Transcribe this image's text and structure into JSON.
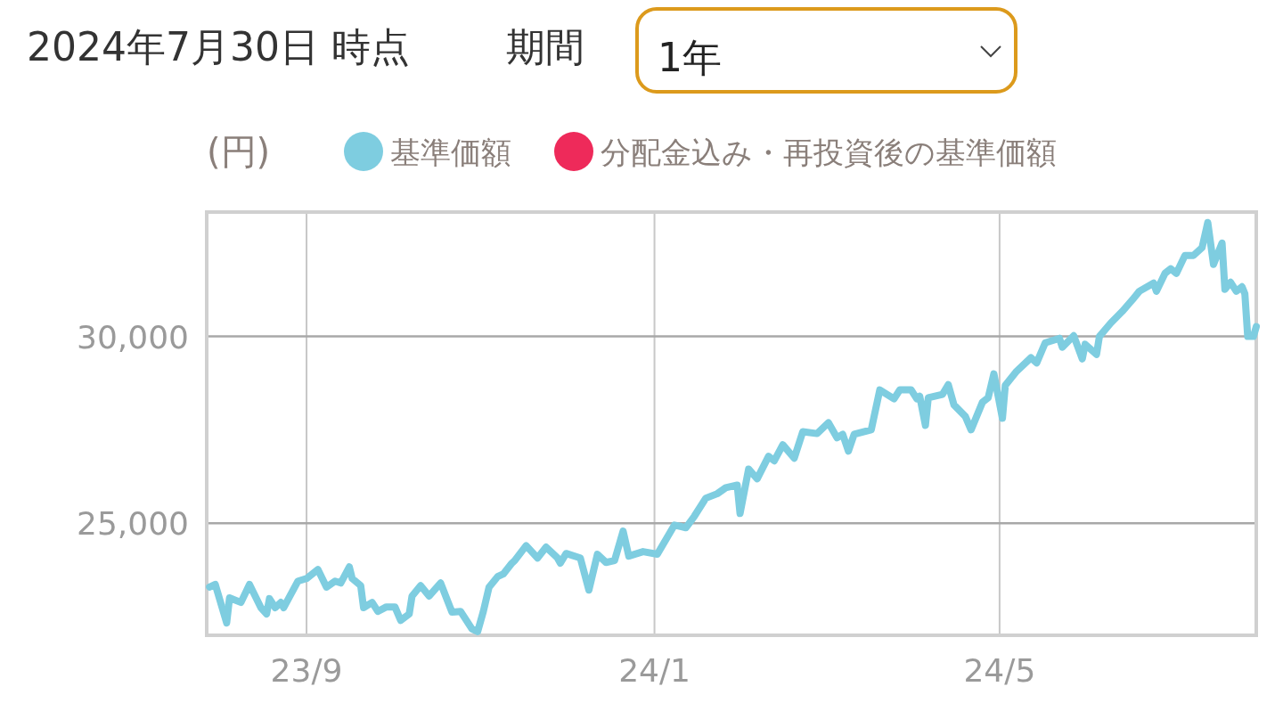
{
  "chart_data": {
    "type": "line",
    "title": "2024年7月30日 時点",
    "annotations": [
      "期間",
      "1年"
    ],
    "ylabel": "(円)",
    "legend": "top",
    "grid": true,
    "xlim": [
      "2023-07-28",
      "2024-07-30"
    ],
    "ylim": [
      22000,
      33330
    ],
    "xticks": [
      {
        "value": "2023-09-01",
        "label": "23/9"
      },
      {
        "value": "2024-01-01",
        "label": "24/1"
      },
      {
        "value": "2024-05-01",
        "label": "24/5"
      }
    ],
    "yticks": [
      {
        "value": 25000,
        "label": "25,000"
      },
      {
        "value": 30000,
        "label": "30,000"
      }
    ],
    "x": [
      "2023-07-29",
      "2023-07-31",
      "2023-08-04",
      "2023-08-05",
      "2023-08-09",
      "2023-08-12",
      "2023-08-16",
      "2023-08-18",
      "2023-08-19",
      "2023-08-21",
      "2023-08-23",
      "2023-08-24",
      "2023-08-29",
      "2023-09-01",
      "2023-09-05",
      "2023-09-08",
      "2023-09-11",
      "2023-09-13",
      "2023-09-16",
      "2023-09-17",
      "2023-09-20",
      "2023-09-21",
      "2023-09-24",
      "2023-09-26",
      "2023-09-29",
      "2023-10-02",
      "2023-10-04",
      "2023-10-07",
      "2023-10-08",
      "2023-10-11",
      "2023-10-14",
      "2023-10-18",
      "2023-10-22",
      "2023-10-25",
      "2023-10-29",
      "2023-10-31",
      "2023-11-02",
      "2023-11-04",
      "2023-11-07",
      "2023-11-09",
      "2023-11-12",
      "2023-11-13",
      "2023-11-17",
      "2023-11-21",
      "2023-11-24",
      "2023-11-28",
      "2023-11-29",
      "2023-12-01",
      "2023-12-06",
      "2023-12-09",
      "2023-12-12",
      "2023-12-15",
      "2023-12-18",
      "2023-12-21",
      "2023-12-23",
      "2023-12-28",
      "2024-01-02",
      "2024-01-08",
      "2024-01-12",
      "2024-01-15",
      "2024-01-19",
      "2024-01-23",
      "2024-01-26",
      "2024-01-30",
      "2024-01-31",
      "2024-02-03",
      "2024-02-06",
      "2024-02-10",
      "2024-02-12",
      "2024-02-15",
      "2024-02-19",
      "2024-02-22",
      "2024-02-27",
      "2024-03-02",
      "2024-03-05",
      "2024-03-07",
      "2024-03-09",
      "2024-03-11",
      "2024-03-17",
      "2024-03-20",
      "2024-03-25",
      "2024-03-27",
      "2024-03-31",
      "2024-04-02",
      "2024-04-03",
      "2024-04-05",
      "2024-04-06",
      "2024-04-11",
      "2024-04-13",
      "2024-04-15",
      "2024-04-19",
      "2024-04-21",
      "2024-04-25",
      "2024-04-27",
      "2024-04-29",
      "2024-05-02",
      "2024-05-03",
      "2024-05-07",
      "2024-05-12",
      "2024-05-14",
      "2024-05-17",
      "2024-05-22",
      "2024-05-23",
      "2024-05-27",
      "2024-05-30",
      "2024-05-31",
      "2024-06-04",
      "2024-06-05",
      "2024-06-09",
      "2024-06-13",
      "2024-06-17",
      "2024-06-19",
      "2024-06-24",
      "2024-06-25",
      "2024-06-28",
      "2024-06-30",
      "2024-07-02",
      "2024-07-05",
      "2024-07-08",
      "2024-07-11",
      "2024-07-13",
      "2024-07-15",
      "2024-07-18",
      "2024-07-19",
      "2024-07-21",
      "2024-07-23",
      "2024-07-25",
      "2024-07-26",
      "2024-07-27",
      "2024-07-29",
      "2024-07-30"
    ],
    "series": [
      {
        "name": "基準価額",
        "color": "#7ecde0",
        "values": [
          23290,
          23360,
          22330,
          23000,
          22880,
          23360,
          22740,
          22570,
          22980,
          22740,
          22880,
          22740,
          23450,
          23520,
          23760,
          23290,
          23450,
          23400,
          23830,
          23520,
          23330,
          22740,
          22880,
          22640,
          22760,
          22760,
          22400,
          22570,
          23050,
          23330,
          23050,
          23400,
          22620,
          22640,
          22170,
          22100,
          22640,
          23290,
          23570,
          23640,
          23930,
          24000,
          24400,
          24070,
          24360,
          24070,
          23930,
          24190,
          24070,
          23210,
          24170,
          23950,
          24000,
          24790,
          24120,
          24240,
          24170,
          24950,
          24880,
          25190,
          25670,
          25790,
          25950,
          26020,
          25260,
          26450,
          26190,
          26790,
          26670,
          27100,
          26740,
          27450,
          27400,
          27690,
          27290,
          27380,
          26930,
          27380,
          27500,
          28570,
          28330,
          28570,
          28570,
          28330,
          28400,
          27620,
          28360,
          28450,
          28710,
          28170,
          27860,
          27500,
          28240,
          28360,
          29000,
          27810,
          28690,
          29070,
          29430,
          29290,
          29830,
          29950,
          29710,
          30020,
          29400,
          29790,
          29520,
          30000,
          30360,
          30670,
          31020,
          31210,
          31430,
          31210,
          31690,
          31810,
          31690,
          32170,
          32170,
          32380,
          33050,
          31930,
          32500,
          31260,
          31450,
          31210,
          31330,
          31140,
          30000,
          30000,
          30260
        ]
      },
      {
        "name": "分配金込み・再投資後の基準価額",
        "color": "#ee2a5a",
        "values": [
          null,
          null,
          null,
          null,
          null,
          null,
          null,
          null,
          null,
          null,
          null,
          null,
          null,
          null,
          null,
          null,
          null,
          null,
          null,
          null,
          null,
          null,
          null,
          null,
          null,
          null,
          null,
          null,
          null,
          null,
          null,
          null,
          null,
          null,
          null,
          null,
          null,
          null,
          null,
          null,
          null,
          null,
          null,
          null,
          null,
          null,
          null,
          null,
          null,
          null,
          null,
          null,
          null,
          null,
          null,
          null,
          null,
          null,
          null,
          null,
          null,
          null,
          null,
          null,
          null,
          null,
          null,
          null,
          null,
          null,
          null,
          null,
          null,
          null,
          null,
          null,
          null,
          null,
          null,
          null,
          null,
          null,
          null,
          null,
          null,
          null,
          null,
          null,
          null,
          null,
          null,
          null,
          null,
          null,
          null,
          null,
          null,
          null,
          null,
          null,
          null,
          null,
          null,
          null,
          null,
          null,
          null,
          null,
          null,
          null,
          null,
          null,
          null,
          null,
          null,
          null,
          null,
          null,
          null,
          null,
          null,
          null,
          null,
          null,
          null,
          null,
          null,
          null,
          null,
          null,
          null
        ]
      }
    ]
  }
}
